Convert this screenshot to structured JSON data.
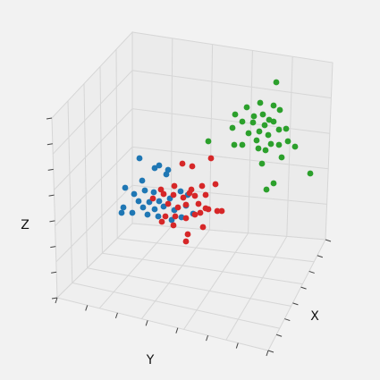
{
  "chart_data": {
    "type": "scatter",
    "title": "",
    "xlabel": "X",
    "ylabel": "Y",
    "zlabel": "Z",
    "projection": "3d",
    "grid": true,
    "legend": "none",
    "series": [
      {
        "color": "#1f77b4",
        "points": [
          [
            156,
            177
          ],
          [
            173,
            188
          ],
          [
            188,
            190
          ],
          [
            178,
            185
          ],
          [
            186,
            195
          ],
          [
            159,
            202
          ],
          [
            140,
            210
          ],
          [
            162,
            213
          ],
          [
            150,
            217
          ],
          [
            172,
            215
          ],
          [
            178,
            225
          ],
          [
            190,
            222
          ],
          [
            202,
            214
          ],
          [
            183,
            231
          ],
          [
            173,
            234
          ],
          [
            160,
            232
          ],
          [
            138,
            232
          ],
          [
            136,
            238
          ],
          [
            148,
            238
          ],
          [
            165,
            240
          ],
          [
            177,
            242
          ],
          [
            195,
            235
          ],
          [
            208,
            230
          ],
          [
            203,
            243
          ],
          [
            192,
            246
          ],
          [
            155,
            225
          ],
          [
            167,
            226
          ],
          [
            210,
            218
          ],
          [
            216,
            239
          ]
        ]
      },
      {
        "color": "#d62728",
        "points": [
          [
            204,
            183
          ],
          [
            215,
            186
          ],
          [
            236,
            177
          ],
          [
            195,
            208
          ],
          [
            214,
            212
          ],
          [
            226,
            208
          ],
          [
            241,
            206
          ],
          [
            183,
            217
          ],
          [
            194,
            218
          ],
          [
            205,
            221
          ],
          [
            218,
            219
          ],
          [
            230,
            218
          ],
          [
            188,
            228
          ],
          [
            199,
            232
          ],
          [
            208,
            229
          ],
          [
            222,
            228
          ],
          [
            233,
            234
          ],
          [
            243,
            236
          ],
          [
            224,
            238
          ],
          [
            185,
            242
          ],
          [
            196,
            242
          ],
          [
            208,
            244
          ],
          [
            181,
            248
          ],
          [
            194,
            252
          ],
          [
            218,
            240
          ],
          [
            227,
            254
          ],
          [
            210,
            262
          ],
          [
            208,
            270
          ],
          [
            180,
            212
          ],
          [
            230,
            233
          ],
          [
            212,
            216
          ],
          [
            248,
            236
          ],
          [
            171,
            222
          ]
        ]
      },
      {
        "color": "#2ca02c",
        "points": [
          [
            309,
            92
          ],
          [
            291,
            115
          ],
          [
            306,
            118
          ],
          [
            276,
            120
          ],
          [
            263,
            128
          ],
          [
            284,
            130
          ],
          [
            294,
            128
          ],
          [
            301,
            134
          ],
          [
            306,
            136
          ],
          [
            313,
            123
          ],
          [
            271,
            136
          ],
          [
            283,
            137
          ],
          [
            312,
            145
          ],
          [
            320,
            144
          ],
          [
            290,
            147
          ],
          [
            300,
            151
          ],
          [
            278,
            149
          ],
          [
            260,
            143
          ],
          [
            233,
            158
          ],
          [
            262,
            162
          ],
          [
            271,
            162
          ],
          [
            287,
            157
          ],
          [
            303,
            161
          ],
          [
            312,
            162
          ],
          [
            297,
            168
          ],
          [
            330,
            164
          ],
          [
            289,
            166
          ],
          [
            315,
            176
          ],
          [
            293,
            183
          ],
          [
            347,
            194
          ],
          [
            306,
            205
          ],
          [
            298,
            212
          ],
          [
            322,
            158
          ],
          [
            296,
            140
          ]
        ]
      }
    ]
  }
}
